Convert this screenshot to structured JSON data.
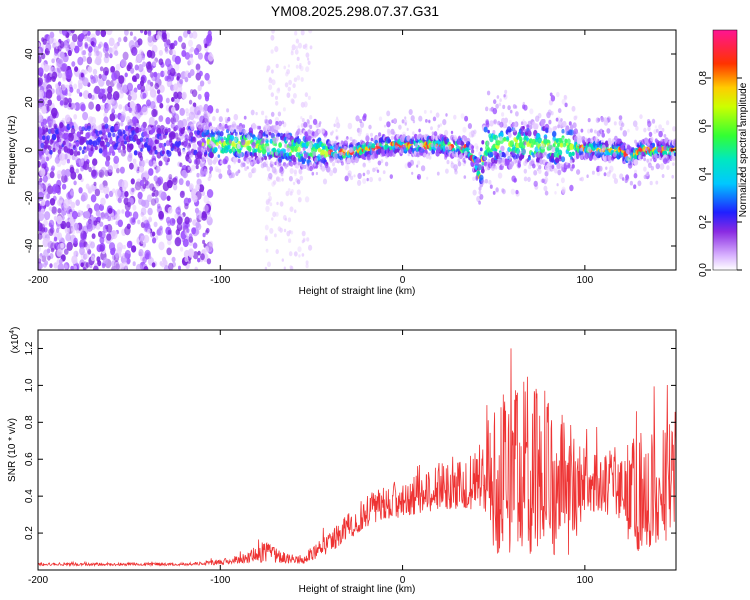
{
  "page": {
    "title": "YM08.2025.298.07.37.G31"
  },
  "chart_data": [
    {
      "type": "heatmap",
      "xlabel": "Height of straight line (km)",
      "ylabel": "Frequency (Hz)",
      "xlim": [
        -200,
        150
      ],
      "ylim": [
        -50,
        50
      ],
      "xticks": [
        -200,
        -100,
        0,
        100
      ],
      "yticks": [
        -40,
        -20,
        0,
        20,
        40
      ],
      "colorbar": {
        "label": "Normalized spectral amplitude",
        "range": [
          0,
          1
        ],
        "ticks": [
          "0.0",
          "0.2",
          "0.4",
          "0.6",
          "0.8"
        ],
        "tick_values": [
          0.0,
          0.2,
          0.4,
          0.6,
          0.8
        ]
      },
      "ridge": {
        "x": [
          -200,
          -150,
          -110,
          -80,
          -50,
          -30,
          -10,
          0,
          20,
          35,
          38,
          40,
          42,
          45,
          60,
          80,
          95,
          110,
          120,
          125,
          130,
          150
        ],
        "y": [
          5,
          4,
          3,
          2,
          0,
          -1,
          2,
          2,
          2,
          1,
          -2,
          -6,
          -12,
          2,
          3,
          2,
          1,
          0,
          0,
          -3,
          0,
          0
        ]
      }
    },
    {
      "type": "line",
      "xlabel": "Height of straight line (km)",
      "ylabel": "SNR (10 * v/v)",
      "scale_label": "(x10",
      "scale_exponent": "4",
      "scale_suffix": ")",
      "xlim": [
        -200,
        150
      ],
      "ylim": [
        0,
        1.3
      ],
      "xticks": [
        -200,
        -100,
        0,
        100
      ],
      "yticks": [
        0.2,
        0.4,
        0.6,
        0.8,
        1.0,
        1.2
      ],
      "ytick_labels": [
        "0.2",
        "0.4",
        "0.6",
        "0.8",
        "1.0",
        "1.2"
      ],
      "series": [
        {
          "color": "#ee3333",
          "envelope": {
            "x": [
              -200,
              -150,
              -120,
              -100,
              -85,
              -75,
              -65,
              -55,
              -50,
              -40,
              -30,
              -20,
              -10,
              0,
              10,
              20,
              30,
              40,
              45,
              50,
              60,
              70,
              80,
              90,
              95,
              100,
              110,
              120,
              125,
              130,
              140,
              150
            ],
            "base": [
              0.03,
              0.03,
              0.03,
              0.04,
              0.06,
              0.09,
              0.06,
              0.05,
              0.08,
              0.14,
              0.22,
              0.3,
              0.34,
              0.36,
              0.4,
              0.43,
              0.45,
              0.46,
              0.48,
              0.38,
              0.4,
              0.42,
              0.4,
              0.38,
              0.38,
              0.45,
              0.45,
              0.42,
              0.36,
              0.36,
              0.38,
              0.42
            ],
            "spread": [
              0.01,
              0.01,
              0.01,
              0.02,
              0.04,
              0.08,
              0.04,
              0.03,
              0.05,
              0.08,
              0.1,
              0.12,
              0.12,
              0.13,
              0.16,
              0.18,
              0.2,
              0.22,
              0.25,
              0.7,
              0.7,
              0.72,
              0.68,
              0.6,
              0.35,
              0.25,
              0.25,
              0.25,
              0.4,
              0.45,
              0.4,
              0.5
            ]
          }
        }
      ]
    }
  ]
}
